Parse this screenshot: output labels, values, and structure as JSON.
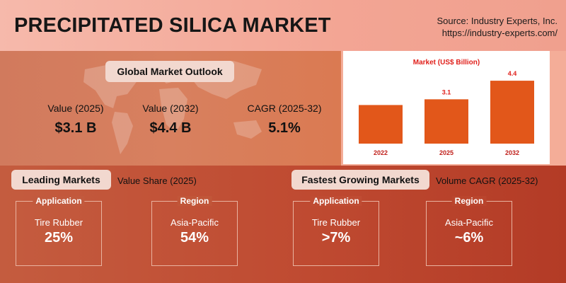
{
  "title": "PRECIPITATED SILICA MARKET",
  "source": {
    "line1": "Source: Industry Experts, Inc.",
    "line2": "https://industry-experts.com/"
  },
  "outlook": {
    "heading": "Global Market Outlook",
    "metrics": [
      {
        "label": "Value (2025)",
        "value": "$3.1 B"
      },
      {
        "label": "Value (2032)",
        "value": "$4.4 B"
      },
      {
        "label": "CAGR (2025-32)",
        "value": "5.1%"
      }
    ],
    "map_icon": "world-map-icon"
  },
  "chart_data": {
    "type": "bar",
    "title": "Market  (US$ Billion)",
    "categories": [
      "2022",
      "2025",
      "2032"
    ],
    "values": [
      null,
      3.1,
      4.4
    ],
    "estimated_values": [
      2.7,
      3.1,
      4.4
    ],
    "data_labels": [
      "",
      "3.1",
      "4.4"
    ],
    "ylim": [
      0,
      4.8
    ],
    "grid": false,
    "bar_color": "#e2571a",
    "title_color": "#e0201b"
  },
  "leading": {
    "heading": "Leading Markets",
    "subtitle": "Value Share (2025)",
    "cards": [
      {
        "category": "Application",
        "name": "Tire Rubber",
        "value": "25%"
      },
      {
        "category": "Region",
        "name": "Asia-Pacific",
        "value": "54%"
      }
    ]
  },
  "fastest": {
    "heading": "Fastest Growing Markets",
    "subtitle": "Volume CAGR (2025-32)",
    "cards": [
      {
        "category": "Application",
        "name": "Tire Rubber",
        "value": ">7%"
      },
      {
        "category": "Region",
        "name": "Asia-Pacific",
        "value": "~6%"
      }
    ]
  },
  "colors": {
    "header_bg": "#f4b0a0",
    "outlook_bg": "#d67d5c",
    "bottom_bg": "#bf4a31",
    "pill_bg": "#f2d8cf",
    "accent": "#e2571a"
  }
}
